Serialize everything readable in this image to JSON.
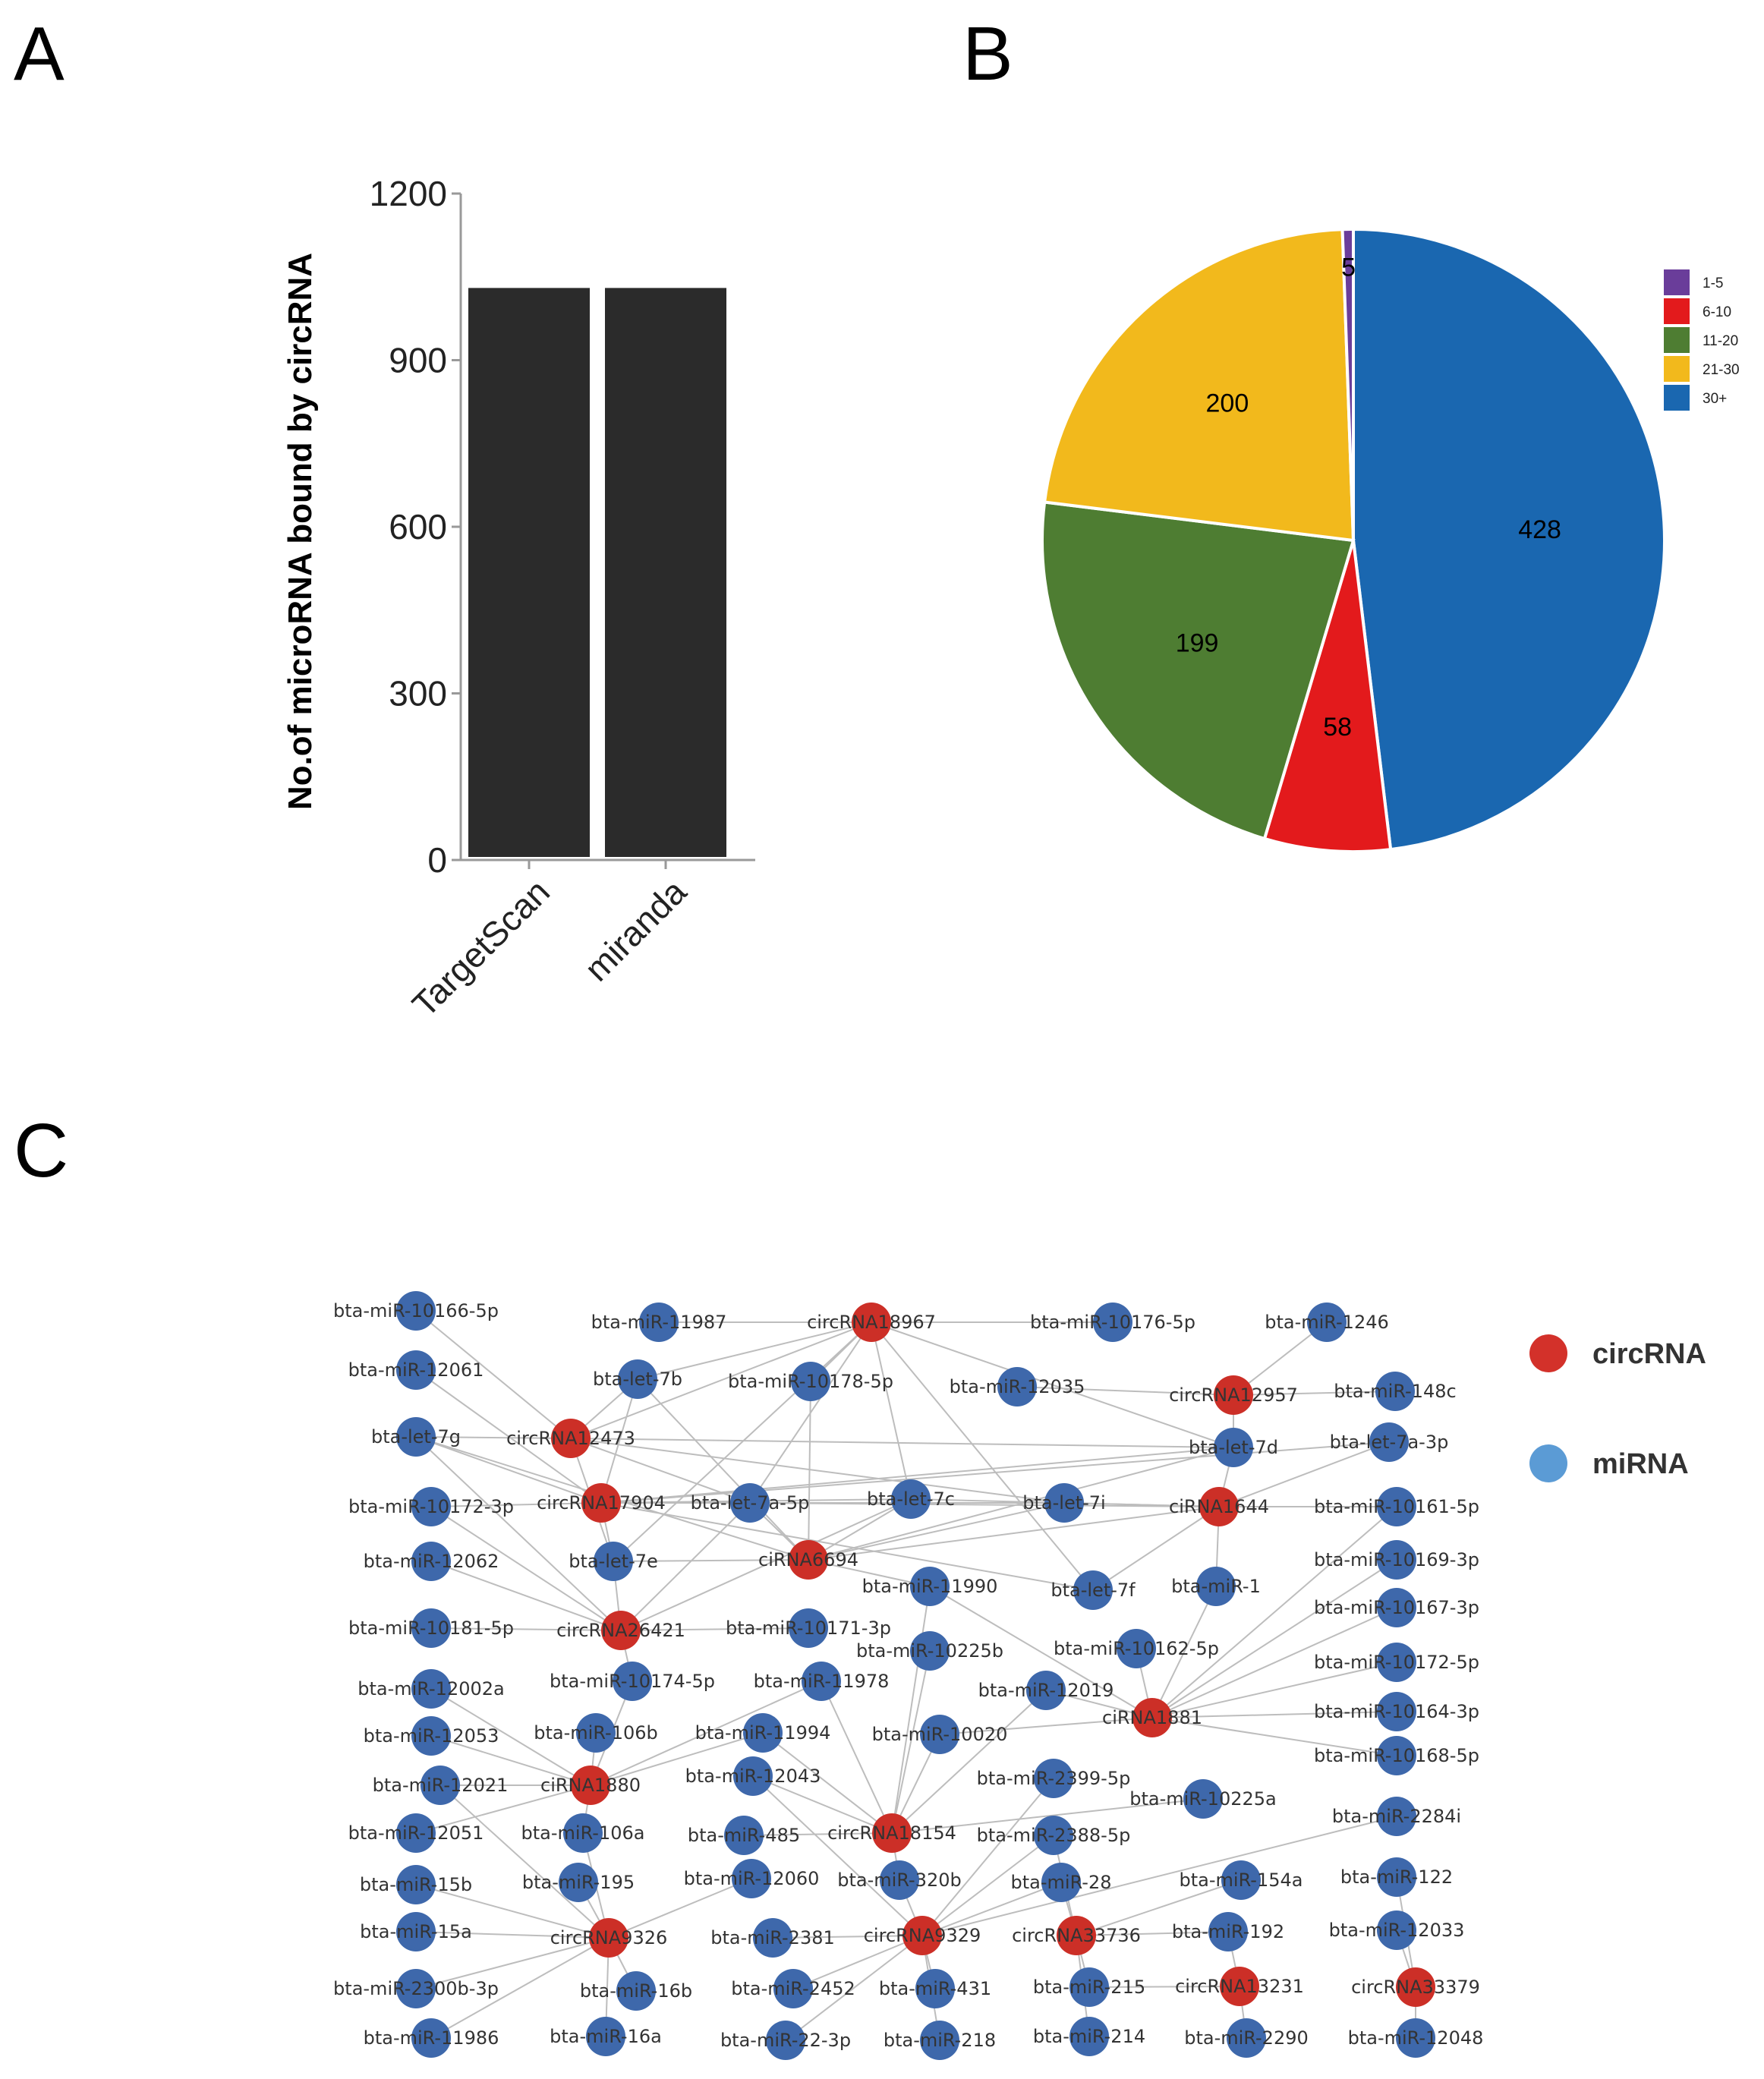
{
  "panels": {
    "a": "A",
    "b": "B",
    "c": "C"
  },
  "chart_data": [
    {
      "type": "bar",
      "categories": [
        "TargetScan",
        "miranda"
      ],
      "values": [
        1030,
        1030
      ],
      "ylabel": "No.of microRNA bound by circRNA",
      "ylim": [
        0,
        1200
      ],
      "yticks": [
        0,
        300,
        600,
        900,
        1200
      ],
      "color": "#2b2b2b"
    },
    {
      "type": "pie",
      "labels": [
        "1-5",
        "6-10",
        "11-20",
        "21-30",
        "30+"
      ],
      "values": [
        5,
        58,
        199,
        200,
        428
      ],
      "colors": [
        "#6a3d9a",
        "#e31a1c",
        "#4e7d32",
        "#f2b91c",
        "#1a67b0"
      ],
      "legend": "top-right"
    }
  ],
  "network": {
    "legend": [
      {
        "label": "circRNA",
        "color": "#d3312a"
      },
      {
        "label": "miRNA",
        "color": "#5b9bd5"
      }
    ],
    "circ_color": "#cc2f27",
    "mirna_color": "#3e68ab",
    "nodes": [
      {
        "id": "m1",
        "label": "bta-miR-10166-5p",
        "type": "mirna"
      },
      {
        "id": "m2",
        "label": "bta-miR-11987",
        "type": "mirna"
      },
      {
        "id": "c1",
        "label": "circRNA18967",
        "type": "circ"
      },
      {
        "id": "m3",
        "label": "bta-miR-10176-5p",
        "type": "mirna"
      },
      {
        "id": "m4",
        "label": "bta-miR-1246",
        "type": "mirna"
      },
      {
        "id": "m5",
        "label": "bta-miR-12061",
        "type": "mirna"
      },
      {
        "id": "m6",
        "label": "bta-let-7b",
        "type": "mirna"
      },
      {
        "id": "m7",
        "label": "bta-miR-10178-5p",
        "type": "mirna"
      },
      {
        "id": "m8",
        "label": "bta-miR-12035",
        "type": "mirna"
      },
      {
        "id": "c2",
        "label": "circRNA12957",
        "type": "circ"
      },
      {
        "id": "m9",
        "label": "bta-miR-148c",
        "type": "mirna"
      },
      {
        "id": "m10",
        "label": "bta-let-7g",
        "type": "mirna"
      },
      {
        "id": "c3",
        "label": "circRNA12473",
        "type": "circ"
      },
      {
        "id": "m11",
        "label": "bta-let-7d",
        "type": "mirna"
      },
      {
        "id": "m12",
        "label": "bta-let-7a-3p",
        "type": "mirna"
      },
      {
        "id": "m13",
        "label": "bta-miR-10172-3p",
        "type": "mirna"
      },
      {
        "id": "c4",
        "label": "circRNA17904",
        "type": "circ"
      },
      {
        "id": "m14",
        "label": "bta-let-7a-5p",
        "type": "mirna"
      },
      {
        "id": "m15",
        "label": "bta-let-7c",
        "type": "mirna"
      },
      {
        "id": "m16",
        "label": "bta-let-7i",
        "type": "mirna"
      },
      {
        "id": "c5",
        "label": "ciRNA1644",
        "type": "circ"
      },
      {
        "id": "m17",
        "label": "bta-miR-10161-5p",
        "type": "mirna"
      },
      {
        "id": "m18",
        "label": "bta-miR-12062",
        "type": "mirna"
      },
      {
        "id": "m19",
        "label": "bta-let-7e",
        "type": "mirna"
      },
      {
        "id": "c6",
        "label": "ciRNA6694",
        "type": "circ"
      },
      {
        "id": "m20",
        "label": "bta-miR-11990",
        "type": "mirna"
      },
      {
        "id": "m21",
        "label": "bta-let-7f",
        "type": "mirna"
      },
      {
        "id": "m22",
        "label": "bta-miR-1",
        "type": "mirna"
      },
      {
        "id": "m23",
        "label": "bta-miR-10169-3p",
        "type": "mirna"
      },
      {
        "id": "m24",
        "label": "bta-miR-10167-3p",
        "type": "mirna"
      },
      {
        "id": "m25",
        "label": "bta-miR-10181-5p",
        "type": "mirna"
      },
      {
        "id": "c7",
        "label": "circRNA26421",
        "type": "circ"
      },
      {
        "id": "m26",
        "label": "bta-miR-10171-3p",
        "type": "mirna"
      },
      {
        "id": "m27",
        "label": "bta-miR-10225b",
        "type": "mirna"
      },
      {
        "id": "m28",
        "label": "bta-miR-10162-5p",
        "type": "mirna"
      },
      {
        "id": "m29",
        "label": "bta-miR-10172-5p",
        "type": "mirna"
      },
      {
        "id": "m30",
        "label": "bta-miR-12002a",
        "type": "mirna"
      },
      {
        "id": "m31",
        "label": "bta-miR-10174-5p",
        "type": "mirna"
      },
      {
        "id": "m32",
        "label": "bta-miR-11978",
        "type": "mirna"
      },
      {
        "id": "m33",
        "label": "bta-miR-12019",
        "type": "mirna"
      },
      {
        "id": "c8",
        "label": "ciRNA1881",
        "type": "circ"
      },
      {
        "id": "m34",
        "label": "bta-miR-10164-3p",
        "type": "mirna"
      },
      {
        "id": "m35",
        "label": "bta-miR-12053",
        "type": "mirna"
      },
      {
        "id": "m36",
        "label": "bta-miR-106b",
        "type": "mirna"
      },
      {
        "id": "m37",
        "label": "bta-miR-11994",
        "type": "mirna"
      },
      {
        "id": "m38",
        "label": "bta-miR-10020",
        "type": "mirna"
      },
      {
        "id": "m39",
        "label": "bta-miR-10168-5p",
        "type": "mirna"
      },
      {
        "id": "m40",
        "label": "bta-miR-12021",
        "type": "mirna"
      },
      {
        "id": "c9",
        "label": "ciRNA1880",
        "type": "circ"
      },
      {
        "id": "m41",
        "label": "bta-miR-12043",
        "type": "mirna"
      },
      {
        "id": "m42",
        "label": "bta-miR-2399-5p",
        "type": "mirna"
      },
      {
        "id": "m43",
        "label": "bta-miR-10225a",
        "type": "mirna"
      },
      {
        "id": "m44",
        "label": "bta-miR-12051",
        "type": "mirna"
      },
      {
        "id": "m45",
        "label": "bta-miR-106a",
        "type": "mirna"
      },
      {
        "id": "m46",
        "label": "bta-miR-485",
        "type": "mirna"
      },
      {
        "id": "c10",
        "label": "circRNA18154",
        "type": "circ"
      },
      {
        "id": "m47",
        "label": "bta-miR-2388-5p",
        "type": "mirna"
      },
      {
        "id": "m48",
        "label": "bta-miR-2284i",
        "type": "mirna"
      },
      {
        "id": "m49",
        "label": "bta-miR-15b",
        "type": "mirna"
      },
      {
        "id": "m50",
        "label": "bta-miR-195",
        "type": "mirna"
      },
      {
        "id": "m51",
        "label": "bta-miR-12060",
        "type": "mirna"
      },
      {
        "id": "m52",
        "label": "bta-miR-320b",
        "type": "mirna"
      },
      {
        "id": "m53",
        "label": "bta-miR-28",
        "type": "mirna"
      },
      {
        "id": "m54",
        "label": "bta-miR-154a",
        "type": "mirna"
      },
      {
        "id": "m55",
        "label": "bta-miR-122",
        "type": "mirna"
      },
      {
        "id": "m56",
        "label": "bta-miR-15a",
        "type": "mirna"
      },
      {
        "id": "c11",
        "label": "circRNA9326",
        "type": "circ"
      },
      {
        "id": "m57",
        "label": "bta-miR-2381",
        "type": "mirna"
      },
      {
        "id": "c12",
        "label": "circRNA9329",
        "type": "circ"
      },
      {
        "id": "c13",
        "label": "circRNA33736",
        "type": "circ"
      },
      {
        "id": "m58",
        "label": "bta-miR-192",
        "type": "mirna"
      },
      {
        "id": "m59",
        "label": "bta-miR-12033",
        "type": "mirna"
      },
      {
        "id": "m60",
        "label": "bta-miR-2300b-3p",
        "type": "mirna"
      },
      {
        "id": "m61",
        "label": "bta-miR-16b",
        "type": "mirna"
      },
      {
        "id": "m62",
        "label": "bta-miR-2452",
        "type": "mirna"
      },
      {
        "id": "m63",
        "label": "bta-miR-431",
        "type": "mirna"
      },
      {
        "id": "m64",
        "label": "bta-miR-215",
        "type": "mirna"
      },
      {
        "id": "c14",
        "label": "circRNA13231",
        "type": "circ"
      },
      {
        "id": "c15",
        "label": "circRNA33379",
        "type": "circ"
      },
      {
        "id": "m65",
        "label": "bta-miR-11986",
        "type": "mirna"
      },
      {
        "id": "m66",
        "label": "bta-miR-16a",
        "type": "mirna"
      },
      {
        "id": "m67",
        "label": "bta-miR-22-3p",
        "type": "mirna"
      },
      {
        "id": "m68",
        "label": "bta-miR-218",
        "type": "mirna"
      },
      {
        "id": "m69",
        "label": "bta-miR-214",
        "type": "mirna"
      },
      {
        "id": "m70",
        "label": "bta-miR-2290",
        "type": "mirna"
      },
      {
        "id": "m71",
        "label": "bta-miR-12048",
        "type": "mirna"
      }
    ],
    "edges": [
      [
        "c1",
        "m2"
      ],
      [
        "c1",
        "m3"
      ],
      [
        "c1",
        "m6"
      ],
      [
        "c1",
        "m7"
      ],
      [
        "c1",
        "m11"
      ],
      [
        "c1",
        "m15"
      ],
      [
        "c1",
        "m21"
      ],
      [
        "c1",
        "c3"
      ],
      [
        "c1",
        "m14"
      ],
      [
        "c1",
        "m19"
      ],
      [
        "c2",
        "m4"
      ],
      [
        "c2",
        "m9"
      ],
      [
        "c2",
        "m8"
      ],
      [
        "c2",
        "m11"
      ],
      [
        "c3",
        "m1"
      ],
      [
        "c3",
        "m10"
      ],
      [
        "c3",
        "m11"
      ],
      [
        "c3",
        "m14"
      ],
      [
        "c3",
        "m16"
      ],
      [
        "c3",
        "m6"
      ],
      [
        "c3",
        "m19"
      ],
      [
        "c4",
        "m10"
      ],
      [
        "c4",
        "m6"
      ],
      [
        "c4",
        "m11"
      ],
      [
        "c4",
        "m14"
      ],
      [
        "c4",
        "m15"
      ],
      [
        "c4",
        "m16"
      ],
      [
        "c4",
        "m19"
      ],
      [
        "c4",
        "m21"
      ],
      [
        "c4",
        "m5"
      ],
      [
        "c4",
        "m13"
      ],
      [
        "c4",
        "m12"
      ],
      [
        "c5",
        "m11"
      ],
      [
        "c5",
        "m12"
      ],
      [
        "c5",
        "m16"
      ],
      [
        "c5",
        "m15"
      ],
      [
        "c5",
        "m14"
      ],
      [
        "c5",
        "m17"
      ],
      [
        "c5",
        "m21"
      ],
      [
        "c5",
        "m22"
      ],
      [
        "c5",
        "c6"
      ],
      [
        "c6",
        "m19"
      ],
      [
        "c6",
        "m14"
      ],
      [
        "c6",
        "m15"
      ],
      [
        "c6",
        "m16"
      ],
      [
        "c6",
        "m10"
      ],
      [
        "c6",
        "m6"
      ],
      [
        "c6",
        "m11"
      ],
      [
        "c6",
        "m20"
      ],
      [
        "c6",
        "m7"
      ],
      [
        "c7",
        "m10"
      ],
      [
        "c7",
        "m25"
      ],
      [
        "c7",
        "m18"
      ],
      [
        "c7",
        "m26"
      ],
      [
        "c7",
        "m31"
      ],
      [
        "c7",
        "m19"
      ],
      [
        "c7",
        "m13"
      ],
      [
        "c7",
        "m14"
      ],
      [
        "c7",
        "m15"
      ],
      [
        "c8",
        "m23"
      ],
      [
        "c8",
        "m24"
      ],
      [
        "c8",
        "m29"
      ],
      [
        "c8",
        "m34"
      ],
      [
        "c8",
        "m39"
      ],
      [
        "c8",
        "m28"
      ],
      [
        "c8",
        "m22"
      ],
      [
        "c8",
        "m33"
      ],
      [
        "c8",
        "m38"
      ],
      [
        "c8",
        "m20"
      ],
      [
        "c8",
        "m17"
      ],
      [
        "c9",
        "m30"
      ],
      [
        "c9",
        "m35"
      ],
      [
        "c9",
        "m40"
      ],
      [
        "c9",
        "m36"
      ],
      [
        "c9",
        "m31"
      ],
      [
        "c9",
        "m32"
      ],
      [
        "c9",
        "m37"
      ],
      [
        "c9",
        "m44"
      ],
      [
        "c9",
        "m45"
      ],
      [
        "c10",
        "m27"
      ],
      [
        "c10",
        "m32"
      ],
      [
        "c10",
        "m37"
      ],
      [
        "c10",
        "m41"
      ],
      [
        "c10",
        "m46"
      ],
      [
        "c10",
        "m33"
      ],
      [
        "c10",
        "m43"
      ],
      [
        "c10",
        "m52"
      ],
      [
        "c10",
        "m20"
      ],
      [
        "c10",
        "m38"
      ],
      [
        "c11",
        "m49"
      ],
      [
        "c11",
        "m50"
      ],
      [
        "c11",
        "m56"
      ],
      [
        "c11",
        "m60"
      ],
      [
        "c11",
        "m61"
      ],
      [
        "c11",
        "m66"
      ],
      [
        "c11",
        "m65"
      ],
      [
        "c11",
        "m45"
      ],
      [
        "c11",
        "m51"
      ],
      [
        "c11",
        "m40"
      ],
      [
        "c12",
        "m52"
      ],
      [
        "c12",
        "m53"
      ],
      [
        "c12",
        "m57"
      ],
      [
        "c12",
        "m62"
      ],
      [
        "c12",
        "m63"
      ],
      [
        "c12",
        "m67"
      ],
      [
        "c12",
        "m68"
      ],
      [
        "c12",
        "m47"
      ],
      [
        "c12",
        "m42"
      ],
      [
        "c12",
        "m48"
      ],
      [
        "c12",
        "m41"
      ],
      [
        "c13",
        "m53"
      ],
      [
        "c13",
        "m58"
      ],
      [
        "c13",
        "m64"
      ],
      [
        "c13",
        "m69"
      ],
      [
        "c13",
        "m54"
      ],
      [
        "c13",
        "m47"
      ],
      [
        "c14",
        "m58"
      ],
      [
        "c14",
        "m70"
      ],
      [
        "c14",
        "m64"
      ],
      [
        "c15",
        "m59"
      ],
      [
        "c15",
        "m71"
      ],
      [
        "c15",
        "m55"
      ]
    ]
  }
}
